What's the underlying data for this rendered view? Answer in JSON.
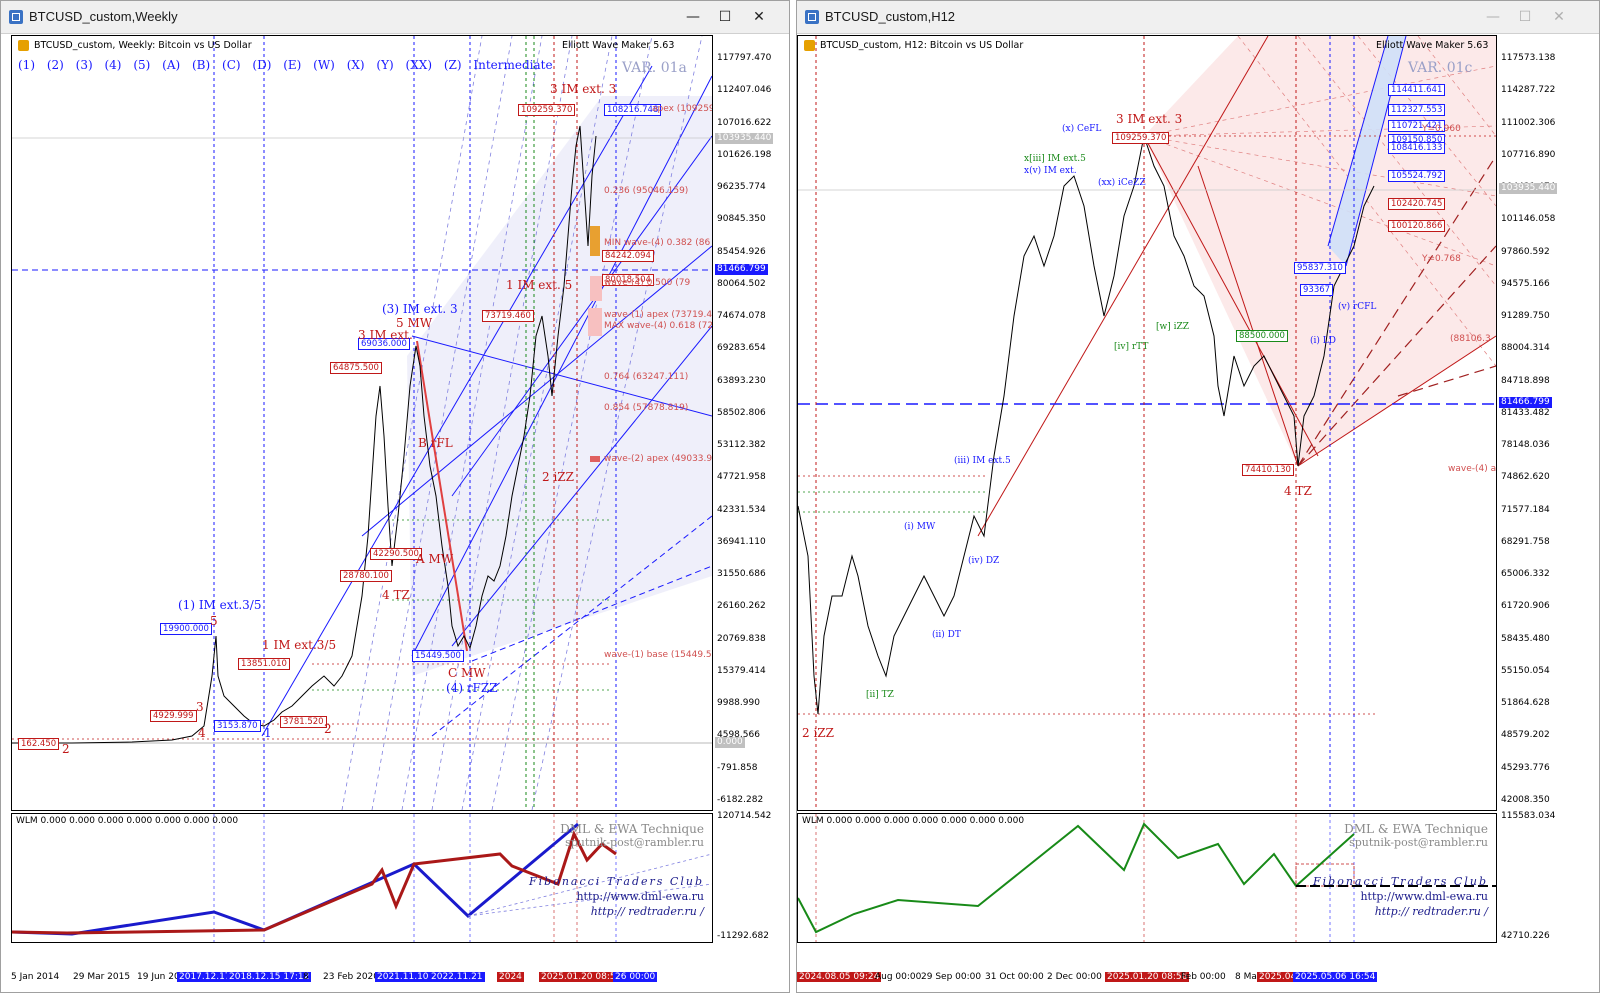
{
  "left": {
    "window_title": "BTCUSD_custom,Weekly",
    "header": "BTCUSD_custom, Weekly:  Bitcoin vs US Dollar",
    "indicator": "Elliott Wave Maker 5.63",
    "degrees": [
      "(1)",
      "(2)",
      "(3)",
      "(4)",
      "(5)",
      "(A)",
      "(B)",
      "(C)",
      "(D)",
      "(E)",
      "(W)",
      "(X)",
      "(Y)",
      "(XX)",
      "(Z)",
      "Intermediate"
    ],
    "variant": "VAR. 01a",
    "price_axis": [
      "117797.470",
      "112407.046",
      "107016.622",
      "101626.198",
      "96235.774",
      "90845.350",
      "85454.926",
      "80064.502",
      "74674.078",
      "69283.654",
      "63893.230",
      "58502.806",
      "53112.382",
      "47721.958",
      "42331.534",
      "36941.110",
      "31550.686",
      "26160.262",
      "20769.838",
      "15379.414",
      "9988.990",
      "4598.566",
      "-791.858",
      "-6182.282"
    ],
    "price_tag_current": "103935.440",
    "price_tag_level": "81466.799",
    "price_tag_zero": "0.000",
    "sub_axis": [
      "120714.542",
      "-11292.682"
    ],
    "time_axis": [
      "5 Jan 2014",
      "29 Mar 2015",
      "19 Jun 20",
      "2017.12.17",
      "2018.12.15 17:12",
      "8",
      "23 Feb 2020",
      "2021.11.10",
      "2022.11.21",
      "2024",
      "2025.01.20 08:56",
      "26 00:00"
    ],
    "price_boxes": [
      {
        "text": "109259.370",
        "color": "red"
      },
      {
        "text": "108216.748",
        "color": "blue"
      },
      {
        "text": "84242.094",
        "color": "red"
      },
      {
        "text": "80018.504",
        "color": "red"
      },
      {
        "text": "73719.460",
        "color": "red"
      },
      {
        "text": "69036.000",
        "color": "blue"
      },
      {
        "text": "64875.500",
        "color": "red"
      },
      {
        "text": "42290.500",
        "color": "red"
      },
      {
        "text": "28780.100",
        "color": "red"
      },
      {
        "text": "19900.000",
        "color": "blue"
      },
      {
        "text": "13851.010",
        "color": "red"
      },
      {
        "text": "4929.999",
        "color": "red"
      },
      {
        "text": "3153.870",
        "color": "blue"
      },
      {
        "text": "3781.520",
        "color": "red"
      },
      {
        "text": "15449.500",
        "color": "blue"
      },
      {
        "text": "162.450",
        "color": "red"
      }
    ],
    "wave_labels": [
      "3 IM ext. 3",
      "1 IM ext. 5",
      "(3) IM ext. 3",
      "5 MW",
      "3 IM ext.",
      "B rFL",
      "4 TZ",
      "A MW",
      "(1) IM ext.3/5",
      "1 IM ext.3/5",
      "C MW",
      "(4) rFZZ",
      "2 iZZ",
      "2",
      "4",
      "3",
      "5",
      "2",
      "1"
    ],
    "fib_labels": [
      "0.236 (95046.159)",
      "MIN wave-(4) 0.382 (86",
      "wave-(4) 0.500 (79",
      "wave-(1) apex (73719.4",
      "MAX wave-(4) 0.618 (72",
      "0.764 (63247.111)",
      "0.854 (57878.819)",
      "wave-(2) apex (49033.9",
      "wave-(1) base (15449.5",
      "apex (109259"
    ],
    "sub_header": "WLM 0.000 0.000 0.000 0.000 0.000 0.000 0.000",
    "credits": [
      "DML & EWA Technique",
      "sputnik-post@rambler.ru",
      "Fibonacci   Traders   Club",
      "http://www.dml-ewa.ru",
      "http:// redtrader.ru /"
    ]
  },
  "right": {
    "window_title": "BTCUSD_custom,H12",
    "header": "BTCUSD_custom, H12:  Bitcoin vs US Dollar",
    "indicator": "Elliott Wave Maker 5.63",
    "variant": "VAR. 01c",
    "price_axis": [
      "117573.138",
      "114287.722",
      "111002.306",
      "107716.890",
      "104431.474",
      "101146.058",
      "97860.592",
      "94575.166",
      "91289.750",
      "88004.314",
      "84718.898",
      "81433.482",
      "78148.036",
      "74862.620",
      "71577.184",
      "68291.758",
      "65006.332",
      "61720.906",
      "58435.480",
      "55150.054",
      "51864.628",
      "48579.202",
      "45293.776",
      "42008.350"
    ],
    "price_tag_current": "103935.440",
    "price_tag_level": "81466.799",
    "sub_axis": [
      "115583.034",
      "42710.226"
    ],
    "time_axis": [
      "2024.08.05 09:24",
      "Aug 00:00",
      "29 Sep 00:00",
      "31 Oct 00:00",
      "2 Dec 00:00",
      "2025.01.20 08:56",
      "Feb 00:00",
      "8 Ma",
      "2025.04",
      "2025.05.06 16:54"
    ],
    "price_boxes": [
      {
        "text": "114411.641",
        "color": "blue"
      },
      {
        "text": "112327.553",
        "color": "blue"
      },
      {
        "text": "110721.421",
        "color": "blue"
      },
      {
        "text": "109259.370",
        "color": "red"
      },
      {
        "text": "109150.850",
        "color": "blue"
      },
      {
        "text": "108416.133",
        "color": "blue"
      },
      {
        "text": "105524.792",
        "color": "blue"
      },
      {
        "text": "102420.745",
        "color": "red"
      },
      {
        "text": "100120.866",
        "color": "red"
      },
      {
        "text": "95837.310",
        "color": "blue"
      },
      {
        "text": "93367",
        "color": "blue"
      },
      {
        "text": "88500.000",
        "color": "green"
      },
      {
        "text": "74410.130",
        "color": "red"
      }
    ],
    "wave_labels": [
      "3 IM ext. 3",
      "4 TZ",
      "2 iZZ",
      "x[iii] IM ext.5",
      "x(v) IM ext.",
      "(x) CeFL",
      "(xx) iCeZZ",
      "[iv] rTT",
      "[w] iZZ",
      "(iii) IM ext.5",
      "(i) MW",
      "(ii) DT",
      "(iv) DZ",
      "[ii] TZ",
      "(i) LD",
      "(v) rCFL",
      "Y=0.960",
      "Y=0.768",
      "(88106.3",
      "wave-(4) a"
    ],
    "sub_header": "WLM 0.000 0.000 0.000 0.000 0.000 0.000 0.000",
    "credits": [
      "DML & EWA Technique",
      "sputnik-post@rambler.ru",
      "Fibonacci   Traders   Club",
      "http://www.dml-ewa.ru",
      "http:// redtrader.ru /"
    ]
  }
}
